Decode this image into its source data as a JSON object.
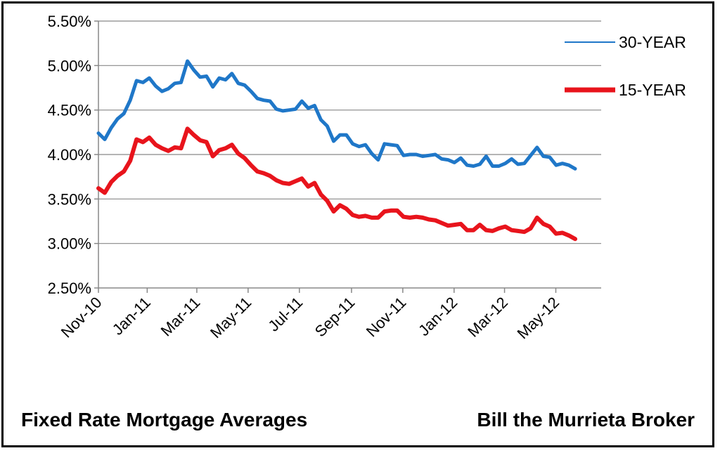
{
  "captions": {
    "left": "Fixed Rate Mortgage Averages",
    "right": "Bill the Murrieta Broker"
  },
  "chart_data": {
    "type": "line",
    "title": "",
    "xlabel": "",
    "ylabel": "",
    "x_start": "2010-11-04",
    "x_end": "2012-05-24",
    "x_ticks": [
      {
        "label": "Nov-10",
        "date": "2010-11-01"
      },
      {
        "label": "Jan-11",
        "date": "2011-01-01"
      },
      {
        "label": "Mar-11",
        "date": "2011-03-01"
      },
      {
        "label": "May-11",
        "date": "2011-05-01"
      },
      {
        "label": "Jul-11",
        "date": "2011-07-01"
      },
      {
        "label": "Sep-11",
        "date": "2011-09-01"
      },
      {
        "label": "Nov-11",
        "date": "2011-11-01"
      },
      {
        "label": "Jan-12",
        "date": "2012-01-01"
      },
      {
        "label": "Mar-12",
        "date": "2012-03-01"
      },
      {
        "label": "May-12",
        "date": "2012-05-01"
      }
    ],
    "ylim": [
      2.5,
      5.5
    ],
    "y_ticks": [
      2.5,
      3.0,
      3.5,
      4.0,
      4.5,
      5.0,
      5.5
    ],
    "y_tick_labels": [
      "2.50%",
      "3.00%",
      "3.50%",
      "4.00%",
      "4.50%",
      "5.00%",
      "5.50%"
    ],
    "grid": "horizontal",
    "legend_position": "right",
    "series": [
      {
        "name": "30-YEAR",
        "color": "#1f77c8",
        "values": [
          4.24,
          4.17,
          4.3,
          4.4,
          4.46,
          4.61,
          4.83,
          4.81,
          4.86,
          4.77,
          4.71,
          4.74,
          4.8,
          4.81,
          5.05,
          4.95,
          4.87,
          4.88,
          4.76,
          4.86,
          4.84,
          4.91,
          4.8,
          4.78,
          4.71,
          4.63,
          4.61,
          4.6,
          4.51,
          4.49,
          4.5,
          4.51,
          4.6,
          4.52,
          4.55,
          4.39,
          4.32,
          4.15,
          4.22,
          4.22,
          4.12,
          4.09,
          4.11,
          4.01,
          3.94,
          4.12,
          4.11,
          4.1,
          3.99,
          4.0,
          4.0,
          3.98,
          3.99,
          4.0,
          3.95,
          3.94,
          3.91,
          3.96,
          3.88,
          3.87,
          3.89,
          3.98,
          3.87,
          3.87,
          3.9,
          3.95,
          3.89,
          3.9,
          3.99,
          4.08,
          3.98,
          3.97,
          3.88,
          3.9,
          3.88,
          3.84
        ]
      },
      {
        "name": "15-YEAR",
        "color": "#e8141c",
        "values": [
          3.62,
          3.57,
          3.69,
          3.76,
          3.81,
          3.93,
          4.17,
          4.14,
          4.19,
          4.11,
          4.07,
          4.04,
          4.08,
          4.07,
          4.29,
          4.22,
          4.16,
          4.14,
          3.98,
          4.05,
          4.07,
          4.11,
          4.01,
          3.96,
          3.88,
          3.81,
          3.79,
          3.76,
          3.71,
          3.68,
          3.67,
          3.7,
          3.73,
          3.64,
          3.68,
          3.55,
          3.48,
          3.36,
          3.43,
          3.39,
          3.32,
          3.3,
          3.31,
          3.29,
          3.29,
          3.36,
          3.37,
          3.37,
          3.3,
          3.29,
          3.3,
          3.29,
          3.27,
          3.26,
          3.23,
          3.2,
          3.21,
          3.22,
          3.15,
          3.15,
          3.21,
          3.15,
          3.14,
          3.17,
          3.19,
          3.15,
          3.14,
          3.13,
          3.17,
          3.29,
          3.22,
          3.19,
          3.11,
          3.12,
          3.09,
          3.05
        ]
      }
    ]
  }
}
